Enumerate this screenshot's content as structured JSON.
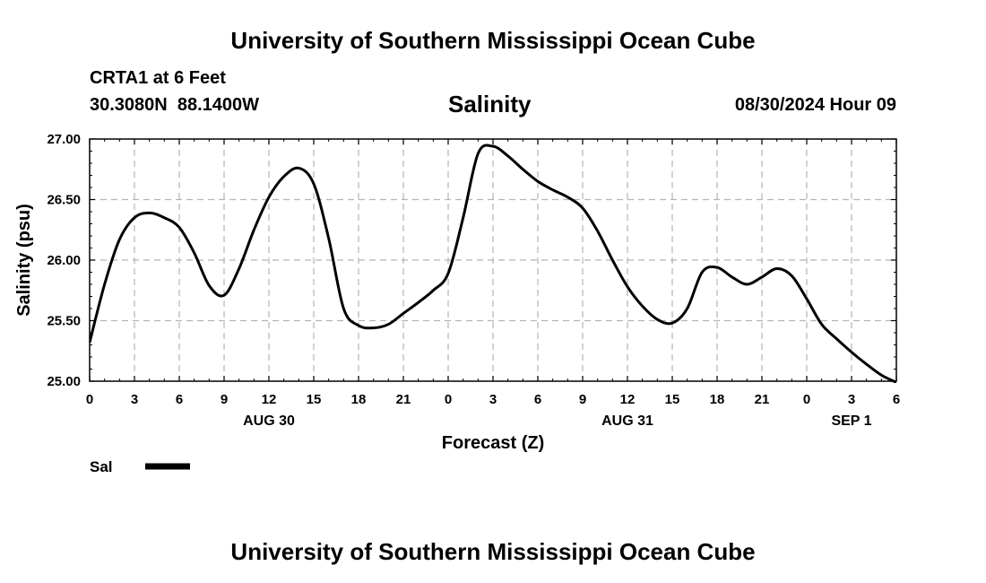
{
  "page": {
    "title_top": "University of Southern Mississippi Ocean Cube",
    "title_bottom": "University of Southern Mississippi Ocean Cube",
    "station": "CRTA1 at 6 Feet",
    "coords": "30.3080N  88.1400W",
    "chart_title": "Salinity",
    "timestamp": "08/30/2024 Hour 09",
    "legend_label": "Sal"
  },
  "chart_data": {
    "type": "line",
    "title": "Salinity",
    "xlabel": "Forecast (Z)",
    "ylabel": "Salinity (psu)",
    "xlim": [
      0,
      54
    ],
    "ylim": [
      25.0,
      27.0
    ],
    "grid": true,
    "legend_placement": "bottom-left",
    "line_color": "#000000",
    "x_tick_values": [
      0,
      3,
      6,
      9,
      12,
      15,
      18,
      21,
      24,
      27,
      30,
      33,
      36,
      39,
      42,
      45,
      48,
      51,
      54
    ],
    "x_tick_labels": [
      "0",
      "3",
      "6",
      "9",
      "12",
      "15",
      "18",
      "21",
      "0",
      "3",
      "6",
      "9",
      "12",
      "15",
      "18",
      "21",
      "0",
      "3",
      "6"
    ],
    "y_ticks": [
      25.0,
      25.5,
      26.0,
      26.5,
      27.0
    ],
    "y_tick_labels": [
      "25.00",
      "25.50",
      "26.00",
      "26.50",
      "27.00"
    ],
    "date_labels": [
      {
        "x": 12,
        "label": "AUG 30"
      },
      {
        "x": 36,
        "label": "AUG 31"
      },
      {
        "x": 51,
        "label": "SEP 1"
      }
    ],
    "series": [
      {
        "name": "Sal",
        "x": [
          0,
          1,
          2,
          3,
          4,
          5,
          6,
          7,
          8,
          9,
          10,
          11,
          12,
          13,
          14,
          15,
          16,
          17,
          18,
          19,
          20,
          21,
          22,
          23,
          24,
          25,
          26,
          27,
          28,
          29,
          30,
          31,
          32,
          33,
          34,
          35,
          36,
          37,
          38,
          39,
          40,
          41,
          42,
          43,
          44,
          45,
          46,
          47,
          48,
          49,
          50,
          51,
          52,
          53,
          54
        ],
        "values": [
          25.32,
          25.8,
          26.17,
          26.35,
          26.39,
          26.35,
          26.27,
          26.06,
          25.79,
          25.71,
          25.93,
          26.25,
          26.52,
          26.69,
          26.76,
          26.63,
          26.18,
          25.6,
          25.46,
          25.44,
          25.47,
          25.56,
          25.65,
          25.75,
          25.89,
          26.35,
          26.88,
          26.94,
          26.86,
          26.75,
          26.65,
          26.58,
          26.52,
          26.43,
          26.24,
          26.0,
          25.78,
          25.62,
          25.51,
          25.48,
          25.6,
          25.9,
          25.94,
          25.86,
          25.8,
          25.86,
          25.93,
          25.87,
          25.68,
          25.47,
          25.35,
          25.24,
          25.14,
          25.05,
          24.99
        ]
      }
    ]
  }
}
